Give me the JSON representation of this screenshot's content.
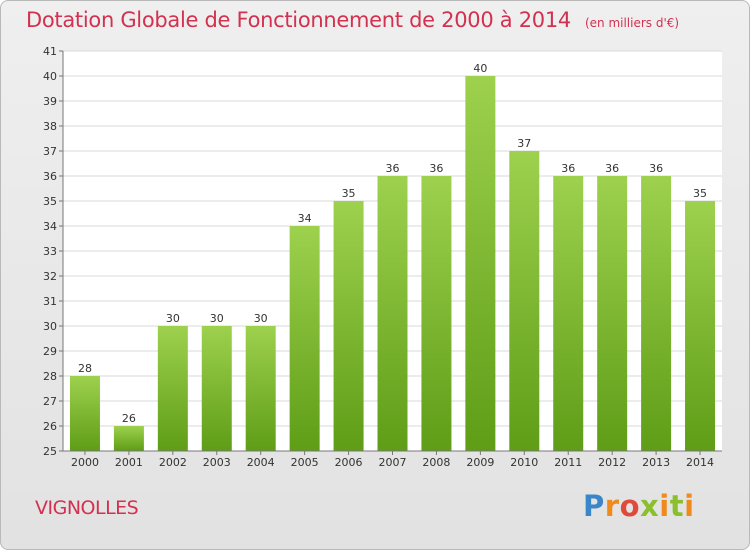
{
  "header": {
    "title": "Dotation Globale de Fonctionnement de 2000 à 2014",
    "subtitle": "(en milliers d'€)"
  },
  "footer": {
    "commune": "VIGNOLLES",
    "logo_text": "Proxiti",
    "logo_colors": [
      "#3a86c9",
      "#f08a1c",
      "#e04a3a",
      "#8bbf2d"
    ]
  },
  "colors": {
    "title": "#d2314f",
    "bar_top": "#9dd14e",
    "bar_bottom": "#5f9d17",
    "axis_text": "#333333",
    "grid": "#d9d9d9"
  },
  "chart_data": {
    "type": "bar",
    "title": "Dotation Globale de Fonctionnement de 2000 à 2014",
    "subtitle": "(en milliers d'€)",
    "categories": [
      "2000",
      "2001",
      "2002",
      "2003",
      "2004",
      "2005",
      "2006",
      "2007",
      "2008",
      "2009",
      "2010",
      "2011",
      "2012",
      "2013",
      "2014"
    ],
    "values": [
      28,
      26,
      30,
      30,
      30,
      34,
      35,
      36,
      36,
      40,
      37,
      36,
      36,
      36,
      35
    ],
    "ylim": [
      25,
      41
    ],
    "yticks": [
      25,
      26,
      27,
      28,
      29,
      30,
      31,
      32,
      33,
      34,
      35,
      36,
      37,
      38,
      39,
      40,
      41
    ],
    "grid": true,
    "data_labels": true
  }
}
